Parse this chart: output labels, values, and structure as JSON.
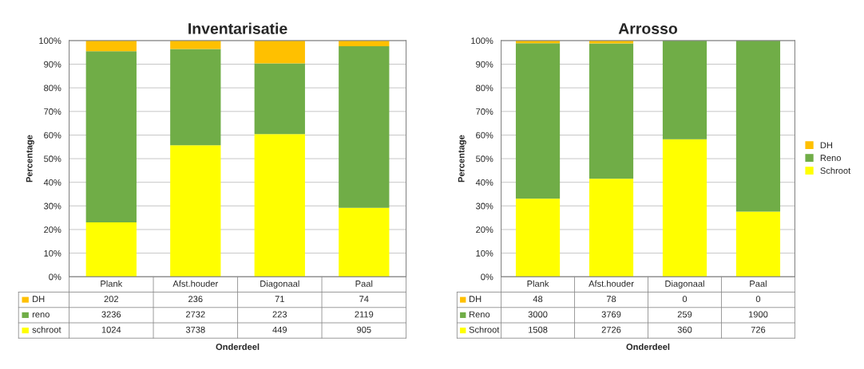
{
  "chart_data": [
    {
      "type": "bar",
      "title": "Inventarisatie",
      "xlabel": "Onderdeel",
      "ylabel": "Percentage",
      "stacked": true,
      "categories": [
        "Plank",
        "Afst.houder",
        "Diagonaal",
        "Paal"
      ],
      "ylim": [
        0,
        100
      ],
      "yticks": [
        {
          "value": 0,
          "label": "0%"
        },
        {
          "value": 10,
          "label": "10%"
        },
        {
          "value": 20,
          "label": "20%"
        },
        {
          "value": 30,
          "label": "30%"
        },
        {
          "value": 40,
          "label": "40%"
        },
        {
          "value": 50,
          "label": "50%"
        },
        {
          "value": 60,
          "label": "60%"
        },
        {
          "value": 70,
          "label": "70%"
        },
        {
          "value": 80,
          "label": "80%"
        },
        {
          "value": 90,
          "label": "90%"
        },
        {
          "value": 100,
          "label": "100%"
        }
      ],
      "grid": "y",
      "legend": "bottom",
      "annotations": [
        "202",
        "236",
        "71",
        "74",
        "3236",
        "2732",
        "223",
        "2119",
        "1024",
        "3738",
        "449",
        "905"
      ],
      "series": [
        {
          "name": "schroot",
          "color": "#ffff00",
          "values": [
            23.0,
            55.7,
            60.4,
            29.2
          ]
        },
        {
          "name": "reno",
          "color": "#70ad47",
          "values": [
            72.5,
            40.7,
            30.0,
            68.4
          ]
        },
        {
          "name": "DH",
          "color": "#ffc000",
          "values": [
            4.5,
            3.6,
            9.6,
            2.4
          ]
        }
      ]
    },
    {
      "type": "bar",
      "title": "Arrosso",
      "xlabel": "Onderdeel",
      "ylabel": "Percentage",
      "stacked": true,
      "categories": [
        "Plank",
        "Afst.houder",
        "Diagonaal",
        "Paal"
      ],
      "ylim": [
        0,
        100
      ],
      "yticks": [
        {
          "value": 0,
          "label": "0%"
        },
        {
          "value": 10,
          "label": "10%"
        },
        {
          "value": 20,
          "label": "20%"
        },
        {
          "value": 30,
          "label": "30%"
        },
        {
          "value": 40,
          "label": "40%"
        },
        {
          "value": 50,
          "label": "50%"
        },
        {
          "value": 60,
          "label": "60%"
        },
        {
          "value": 70,
          "label": "70%"
        },
        {
          "value": 80,
          "label": "80%"
        },
        {
          "value": 90,
          "label": "90%"
        },
        {
          "value": 100,
          "label": "100%"
        }
      ],
      "grid": "y",
      "legend": "right",
      "annotations": [
        "48",
        "78",
        "0",
        "0",
        "3000",
        "3769",
        "259",
        "1900",
        "1508",
        "2726",
        "360",
        "726"
      ],
      "series": [
        {
          "name": "Schroot",
          "color": "#ffff00",
          "values": [
            33.1,
            41.5,
            58.2,
            27.6
          ]
        },
        {
          "name": "Reno",
          "color": "#70ad47",
          "values": [
            65.8,
            57.3,
            41.8,
            72.4
          ]
        },
        {
          "name": "DH",
          "color": "#ffc000",
          "values": [
            1.1,
            1.2,
            0.0,
            0.0
          ]
        }
      ]
    }
  ]
}
